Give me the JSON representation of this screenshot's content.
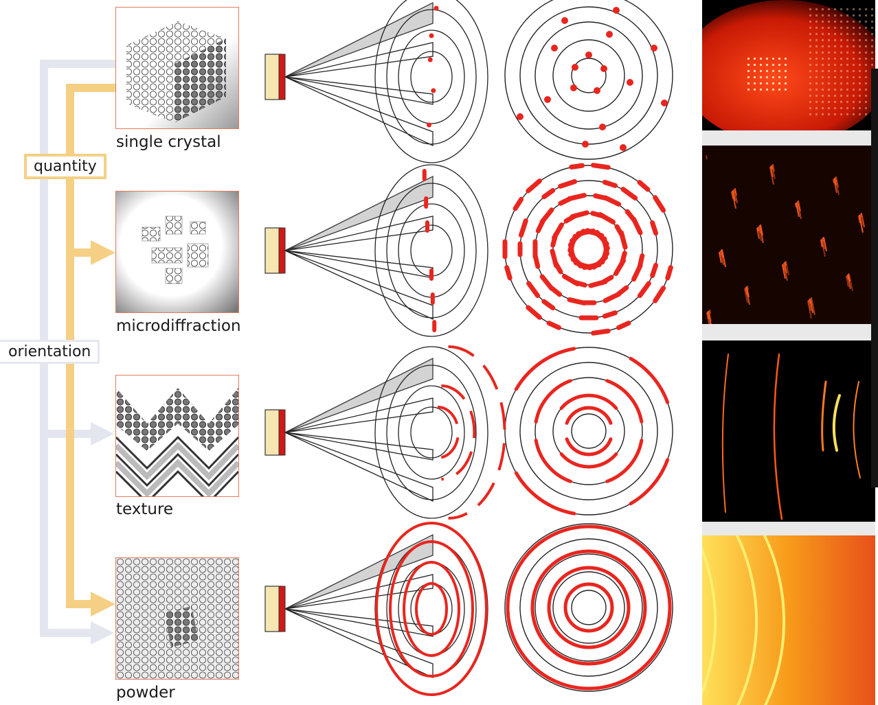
{
  "labels": {
    "quantity": "quantity",
    "orientation": "orientation"
  },
  "rows": [
    {
      "name": "single crystal",
      "spot_type": "dots"
    },
    {
      "name": "microdiffraction",
      "spot_type": "dashes"
    },
    {
      "name": "texture",
      "spot_type": "arcs"
    },
    {
      "name": "powder",
      "spot_type": "rings"
    }
  ],
  "colors": {
    "quantity_arrow": "#f5cf84",
    "orientation_arrow": "#e3e6ee",
    "diffraction_red": "#e8261f",
    "sample_frame": "#e07a5f",
    "source_body": "#f6e6b2",
    "source_window": "#d01818"
  }
}
